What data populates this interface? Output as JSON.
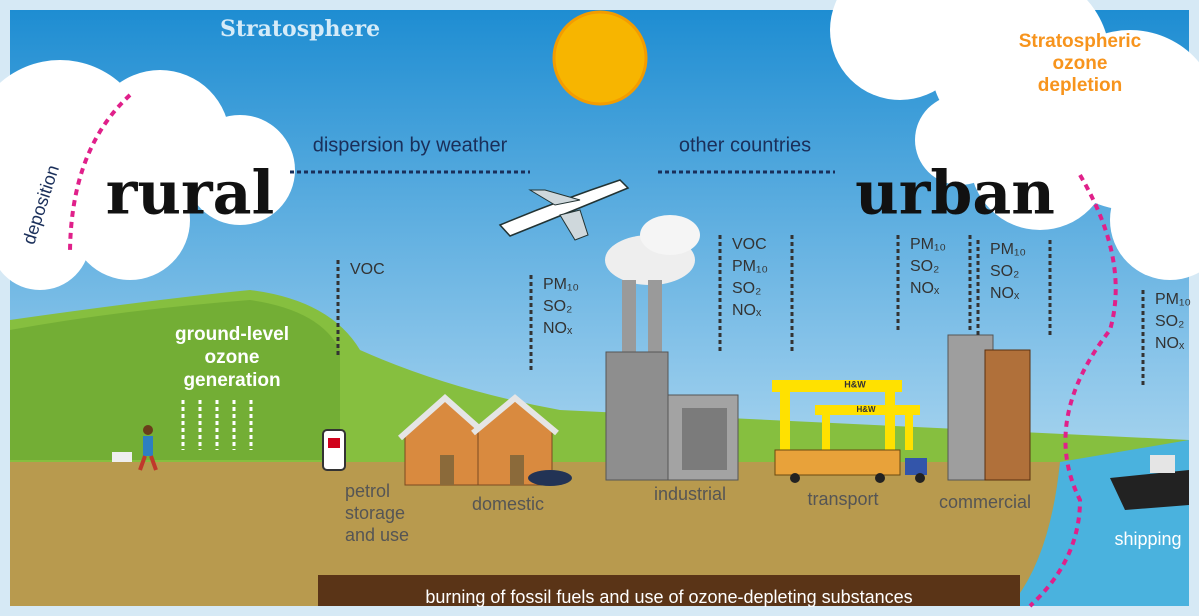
{
  "title": "Stratosphere",
  "stratospheric": [
    "Stratospheric",
    "ozone",
    "depletion"
  ],
  "dispersion": "dispersion by weather",
  "other_countries": "other countries",
  "deposition": "deposition",
  "rural": "rural",
  "urban": "urban",
  "ground_level": [
    "ground-level",
    "ozone",
    "generation"
  ],
  "sources": [
    {
      "label": [
        "petrol",
        "storage",
        "and use"
      ],
      "pollutants": [
        "VOC"
      ]
    },
    {
      "label": [
        "domestic"
      ],
      "pollutants": [
        "PM₁₀",
        "SO₂",
        "NOₓ"
      ]
    },
    {
      "label": [
        "industrial"
      ],
      "pollutants": [
        "VOC",
        "PM₁₀",
        "SO₂",
        "NOₓ"
      ]
    },
    {
      "label": [
        "transport"
      ],
      "pollutants": [
        "PM₁₀",
        "SO₂",
        "NOₓ"
      ]
    },
    {
      "label": [
        "commercial"
      ],
      "pollutants": [
        "PM₁₀",
        "SO₂",
        "NOₓ"
      ]
    },
    {
      "label": [
        "shipping"
      ],
      "pollutants": [
        "PM₁₀",
        "SO₂",
        "NOₓ"
      ]
    }
  ],
  "crane_labels": [
    "H&W",
    "H&W"
  ],
  "banner": "burning of fossil fuels and use of ozone-depleting substances"
}
